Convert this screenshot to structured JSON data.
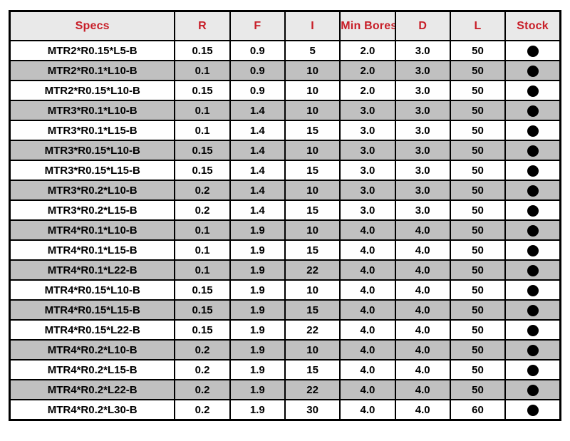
{
  "colors": {
    "header_bg": "#e9e9e9",
    "header_text": "#c81e28",
    "row_bg": "#ffffff",
    "row_alt_bg": "#c0c0c0",
    "grid_border": "#000000",
    "stock_dot": "#000000"
  },
  "table": {
    "headers": [
      "Specs",
      "R",
      "F",
      "I",
      "Min Bores",
      "D",
      "L",
      "Stock"
    ],
    "stock_icon": "filled-black-circle",
    "rows": [
      {
        "specs": "MTR2*R0.15*L5-B",
        "r": "0.15",
        "f": "0.9",
        "i": "5",
        "min_bores": "2.0",
        "d": "3.0",
        "l": "50",
        "stock": "in-stock"
      },
      {
        "specs": "MTR2*R0.1*L10-B",
        "r": "0.1",
        "f": "0.9",
        "i": "10",
        "min_bores": "2.0",
        "d": "3.0",
        "l": "50",
        "stock": "in-stock"
      },
      {
        "specs": "MTR2*R0.15*L10-B",
        "r": "0.15",
        "f": "0.9",
        "i": "10",
        "min_bores": "2.0",
        "d": "3.0",
        "l": "50",
        "stock": "in-stock"
      },
      {
        "specs": "MTR3*R0.1*L10-B",
        "r": "0.1",
        "f": "1.4",
        "i": "10",
        "min_bores": "3.0",
        "d": "3.0",
        "l": "50",
        "stock": "in-stock"
      },
      {
        "specs": "MTR3*R0.1*L15-B",
        "r": "0.1",
        "f": "1.4",
        "i": "15",
        "min_bores": "3.0",
        "d": "3.0",
        "l": "50",
        "stock": "in-stock"
      },
      {
        "specs": "MTR3*R0.15*L10-B",
        "r": "0.15",
        "f": "1.4",
        "i": "10",
        "min_bores": "3.0",
        "d": "3.0",
        "l": "50",
        "stock": "in-stock"
      },
      {
        "specs": "MTR3*R0.15*L15-B",
        "r": "0.15",
        "f": "1.4",
        "i": "15",
        "min_bores": "3.0",
        "d": "3.0",
        "l": "50",
        "stock": "in-stock"
      },
      {
        "specs": "MTR3*R0.2*L10-B",
        "r": "0.2",
        "f": "1.4",
        "i": "10",
        "min_bores": "3.0",
        "d": "3.0",
        "l": "50",
        "stock": "in-stock"
      },
      {
        "specs": "MTR3*R0.2*L15-B",
        "r": "0.2",
        "f": "1.4",
        "i": "15",
        "min_bores": "3.0",
        "d": "3.0",
        "l": "50",
        "stock": "in-stock"
      },
      {
        "specs": "MTR4*R0.1*L10-B",
        "r": "0.1",
        "f": "1.9",
        "i": "10",
        "min_bores": "4.0",
        "d": "4.0",
        "l": "50",
        "stock": "in-stock"
      },
      {
        "specs": "MTR4*R0.1*L15-B",
        "r": "0.1",
        "f": "1.9",
        "i": "15",
        "min_bores": "4.0",
        "d": "4.0",
        "l": "50",
        "stock": "in-stock"
      },
      {
        "specs": "MTR4*R0.1*L22-B",
        "r": "0.1",
        "f": "1.9",
        "i": "22",
        "min_bores": "4.0",
        "d": "4.0",
        "l": "50",
        "stock": "in-stock"
      },
      {
        "specs": "MTR4*R0.15*L10-B",
        "r": "0.15",
        "f": "1.9",
        "i": "10",
        "min_bores": "4.0",
        "d": "4.0",
        "l": "50",
        "stock": "in-stock"
      },
      {
        "specs": "MTR4*R0.15*L15-B",
        "r": "0.15",
        "f": "1.9",
        "i": "15",
        "min_bores": "4.0",
        "d": "4.0",
        "l": "50",
        "stock": "in-stock"
      },
      {
        "specs": "MTR4*R0.15*L22-B",
        "r": "0.15",
        "f": "1.9",
        "i": "22",
        "min_bores": "4.0",
        "d": "4.0",
        "l": "50",
        "stock": "in-stock"
      },
      {
        "specs": "MTR4*R0.2*L10-B",
        "r": "0.2",
        "f": "1.9",
        "i": "10",
        "min_bores": "4.0",
        "d": "4.0",
        "l": "50",
        "stock": "in-stock"
      },
      {
        "specs": "MTR4*R0.2*L15-B",
        "r": "0.2",
        "f": "1.9",
        "i": "15",
        "min_bores": "4.0",
        "d": "4.0",
        "l": "50",
        "stock": "in-stock"
      },
      {
        "specs": "MTR4*R0.2*L22-B",
        "r": "0.2",
        "f": "1.9",
        "i": "22",
        "min_bores": "4.0",
        "d": "4.0",
        "l": "50",
        "stock": "in-stock"
      },
      {
        "specs": "MTR4*R0.2*L30-B",
        "r": "0.2",
        "f": "1.9",
        "i": "30",
        "min_bores": "4.0",
        "d": "4.0",
        "l": "60",
        "stock": "in-stock"
      }
    ]
  }
}
